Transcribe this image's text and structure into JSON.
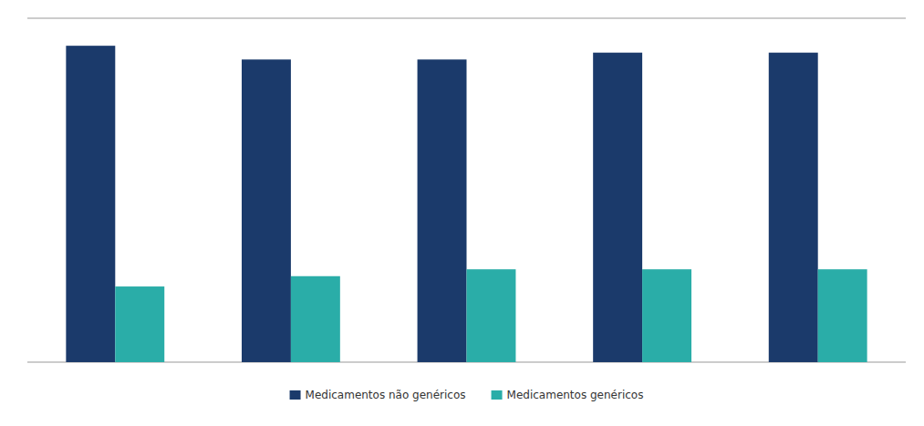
{
  "chart_data": {
    "type": "bar",
    "categories": [
      null,
      null,
      null,
      null,
      null
    ],
    "series": [
      {
        "name": "Medicamentos não genéricos",
        "color": "#1B3A6B",
        "values": [
          92,
          88,
          88,
          90,
          90
        ]
      },
      {
        "name": "Medicamentos genéricos",
        "color": "#2AADA8",
        "values": [
          22,
          25,
          27,
          27,
          27
        ]
      }
    ],
    "ylim": [
      0,
      100
    ],
    "yticks": [],
    "grid": false,
    "tick_labels": false,
    "legend": "bottom"
  }
}
